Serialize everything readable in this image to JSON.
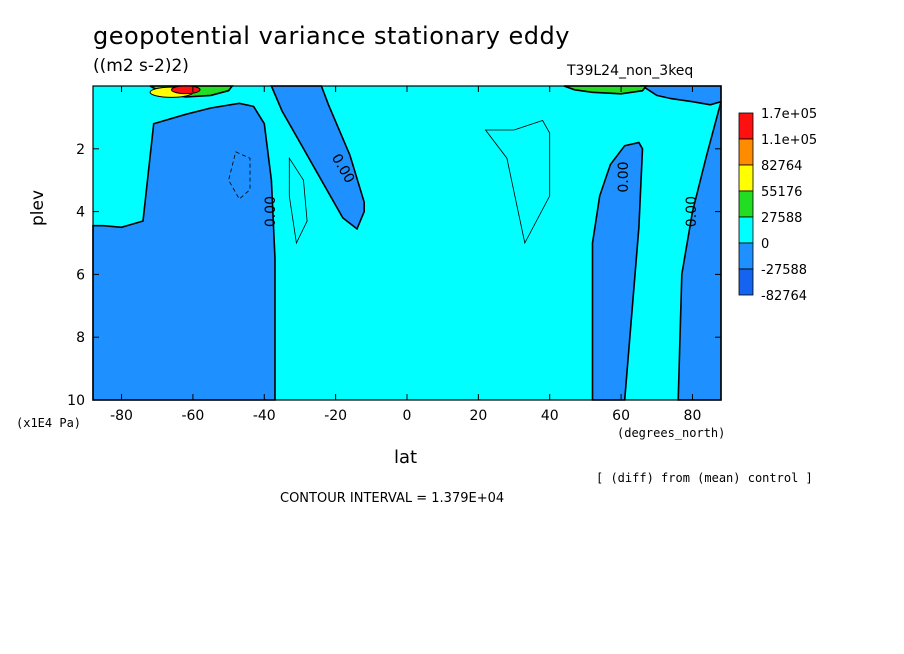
{
  "title": "geopotential variance stationary eddy",
  "units": "((m2 s-2)2)",
  "experiment": "T39L24_non_3keq",
  "ylabel": "plev",
  "yunits": "(x1E4 Pa)",
  "xlabel": "lat",
  "xunits": "(degrees_north)",
  "diff_note": "[ (diff) from (mean) control ]",
  "contour_interval": "CONTOUR INTERVAL = 1.379E+04",
  "chart_data": {
    "type": "heatmap",
    "title": "geopotential variance stationary eddy",
    "units": "((m2 s-2)2)",
    "xlabel": "lat",
    "ylabel": "plev",
    "xlim": [
      -88,
      88
    ],
    "ylim": [
      10,
      0
    ],
    "y_inverted": true,
    "xticks": [
      -80,
      -60,
      -40,
      -20,
      0,
      20,
      40,
      60,
      80
    ],
    "xtick_labels": [
      "-80",
      "-60",
      "-40",
      "-20",
      "0",
      "20",
      "40",
      "60",
      "80"
    ],
    "yticks": [
      2,
      4,
      6,
      8,
      10
    ],
    "ytick_labels": [
      "2",
      "4",
      "6",
      "8",
      "10"
    ],
    "contour_interval": 13790,
    "contour_labels": [
      {
        "text": "0.00",
        "lat": -37,
        "plev": 4.0
      },
      {
        "text": "0.00",
        "lat": -19,
        "plev": 2.7
      },
      {
        "text": "0.00",
        "lat": 62,
        "plev": 2.9
      },
      {
        "text": "0.00",
        "lat": 81,
        "plev": 4.0
      }
    ],
    "colorbar": {
      "labels": [
        "1.7e+05",
        "1.1e+05",
        "82764",
        "55176",
        "27588",
        "0",
        "-27588",
        "-82764"
      ],
      "colors": [
        "#ff1010",
        "#ff8c00",
        "#ffff00",
        "#22dd22",
        "#00ffff",
        "#1e90ff",
        "#1464f0"
      ]
    },
    "regions": [
      {
        "level": "negative",
        "color": "#1e90ff",
        "polygon": [
          [
            -88,
            4.45
          ],
          [
            -85,
            4.45
          ],
          [
            -80,
            4.5
          ],
          [
            -74,
            4.3
          ],
          [
            -71,
            1.2
          ],
          [
            -62,
            0.9
          ],
          [
            -55,
            0.7
          ],
          [
            -47,
            0.55
          ],
          [
            -43,
            0.65
          ],
          [
            -40,
            1.2
          ],
          [
            -38,
            3.0
          ],
          [
            -37,
            5.5
          ],
          [
            -37,
            10
          ],
          [
            -88,
            10
          ]
        ]
      },
      {
        "level": "negative",
        "color": "#1e90ff",
        "polygon": [
          [
            -38,
            0
          ],
          [
            -24,
            0
          ],
          [
            -22,
            0.6
          ],
          [
            -16,
            2.2
          ],
          [
            -12,
            3.7
          ],
          [
            -12,
            4.0
          ],
          [
            -14,
            4.55
          ],
          [
            -18,
            4.2
          ],
          [
            -24,
            3.0
          ],
          [
            -30,
            1.8
          ],
          [
            -35,
            0.8
          ]
        ]
      },
      {
        "level": "negative",
        "color": "#1e90ff",
        "polygon": [
          [
            52,
            10
          ],
          [
            52,
            5
          ],
          [
            54,
            3.5
          ],
          [
            57,
            2.5
          ],
          [
            61,
            1.9
          ],
          [
            65,
            1.8
          ],
          [
            66,
            2.0
          ],
          [
            65,
            4.5
          ],
          [
            61,
            10
          ]
        ]
      },
      {
        "level": "negative",
        "color": "#1e90ff",
        "polygon": [
          [
            76,
            10
          ],
          [
            77,
            6
          ],
          [
            80,
            4
          ],
          [
            84,
            2.2
          ],
          [
            88,
            0.5
          ],
          [
            88,
            10
          ]
        ]
      },
      {
        "level": "negative",
        "color": "#1e90ff",
        "polygon": [
          [
            66,
            0
          ],
          [
            88,
            0
          ],
          [
            88,
            0.5
          ],
          [
            85,
            0.6
          ],
          [
            80,
            0.5
          ],
          [
            74,
            0.4
          ],
          [
            70,
            0.3
          ]
        ]
      },
      {
        "level": "positive",
        "color": "#22dd22",
        "polygon": [
          [
            -72,
            0
          ],
          [
            -49,
            0
          ],
          [
            -50,
            0.15
          ],
          [
            -55,
            0.3
          ],
          [
            -62,
            0.35
          ],
          [
            -68,
            0.25
          ]
        ]
      },
      {
        "level": "positive",
        "color": "#22dd22",
        "polygon": [
          [
            44,
            0
          ],
          [
            67,
            0
          ],
          [
            66,
            0.15
          ],
          [
            60,
            0.25
          ],
          [
            52,
            0.2
          ],
          [
            47,
            0.12
          ]
        ]
      }
    ]
  }
}
